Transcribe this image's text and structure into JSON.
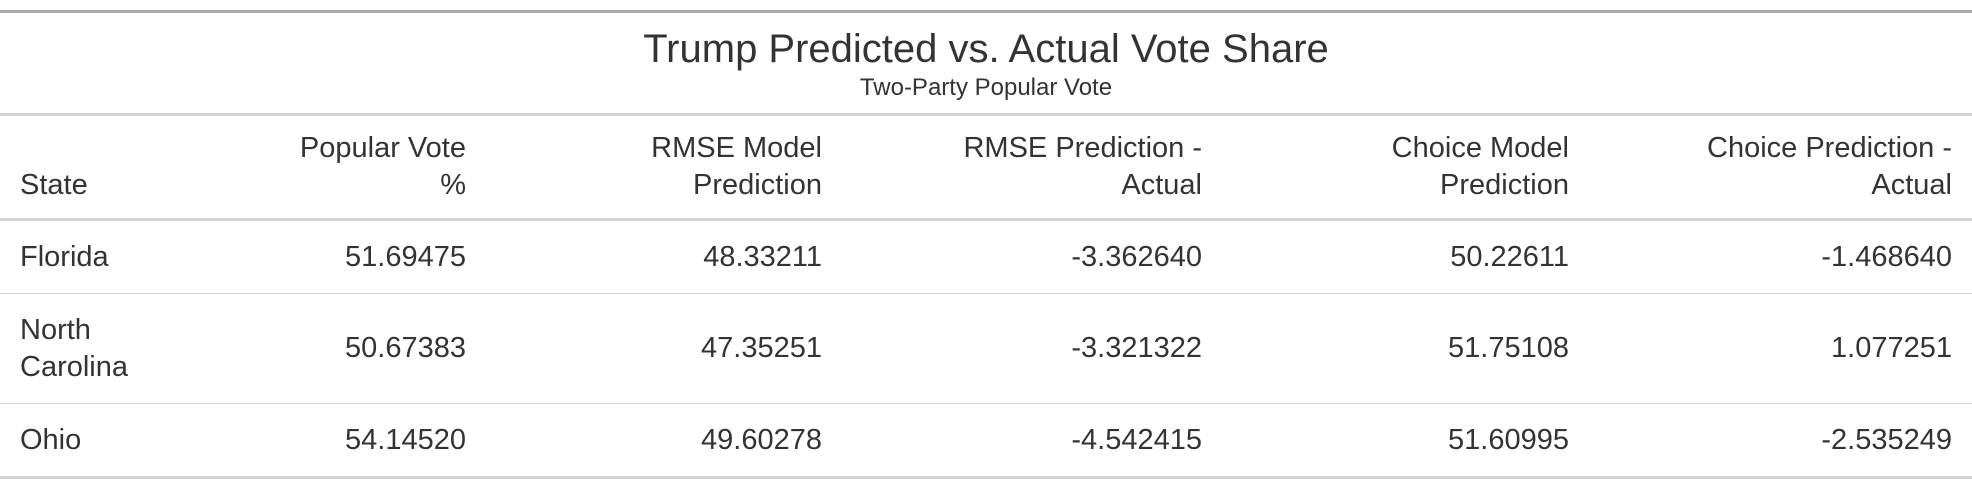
{
  "table": {
    "title": "Trump Predicted vs. Actual Vote Share",
    "subtitle": "Two-Party Popular Vote",
    "columns": [
      "State",
      "Popular Vote\n%",
      "RMSE Model\nPrediction",
      "RMSE Prediction -\nActual",
      "Choice Model\nPrediction",
      "Choice Prediction -\nActual"
    ],
    "rows": [
      {
        "state": "Florida",
        "popular_vote": "51.69475",
        "rmse_prediction": "48.33211",
        "rmse_diff": "-3.362640",
        "choice_prediction": "50.22611",
        "choice_diff": "-1.468640"
      },
      {
        "state": "North\nCarolina",
        "popular_vote": "50.67383",
        "rmse_prediction": "47.35251",
        "rmse_diff": "-3.321322",
        "choice_prediction": "51.75108",
        "choice_diff": "1.077251"
      },
      {
        "state": "Ohio",
        "popular_vote": "54.14520",
        "rmse_prediction": "49.60278",
        "rmse_diff": "-4.542415",
        "choice_prediction": "51.60995",
        "choice_diff": "-2.535249"
      }
    ]
  }
}
